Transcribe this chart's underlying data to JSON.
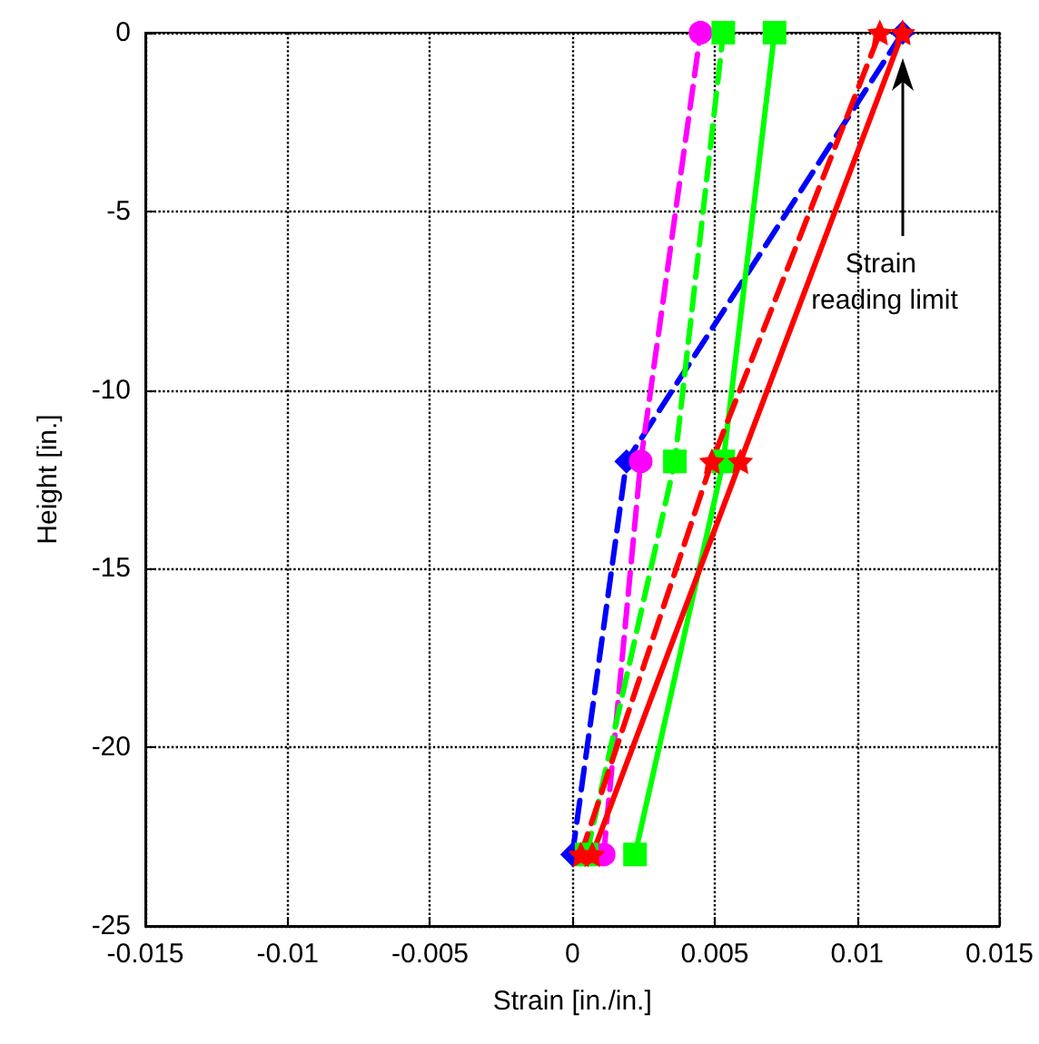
{
  "chart_data": {
    "type": "line",
    "xlabel": "Strain [in./in.]",
    "ylabel": "Height [in.]",
    "xlim": [
      -0.015,
      0.015
    ],
    "xticks": [
      -0.015,
      -0.01,
      -0.005,
      0,
      0.005,
      0.01,
      0.015
    ],
    "ylim": [
      -25,
      0
    ],
    "yticks": [
      -25,
      -20,
      -15,
      -10,
      -5,
      0
    ],
    "grid": true,
    "series": [
      {
        "color": "#0000ff",
        "x": [
          0,
          0.0019,
          0.0116
        ],
        "values": [
          -23,
          -12,
          0
        ],
        "marker": "diamond",
        "line_style": "dashed"
      },
      {
        "color": "#ff00ff",
        "x": [
          0.0011,
          0.0024,
          0.0045
        ],
        "values": [
          -23,
          -12,
          0
        ],
        "marker": "circle",
        "line_style": "dashed"
      },
      {
        "color": "#00ff00",
        "x": [
          0.0005,
          0.0036,
          0.0053
        ],
        "values": [
          -23,
          -12,
          0
        ],
        "marker": "square",
        "line_style": "dashed"
      },
      {
        "color": "#00ff00",
        "x": [
          0.0022,
          0.0053,
          0.0071
        ],
        "values": [
          -23,
          -12,
          0
        ],
        "marker": "square",
        "line_style": "solid"
      },
      {
        "color": "#ff0000",
        "x": [
          0.0003,
          0.0049,
          0.0108
        ],
        "values": [
          -23,
          -12,
          0
        ],
        "marker": "star",
        "line_style": "dashed"
      },
      {
        "color": "#ff0000",
        "x": [
          0.0007,
          0.0059,
          0.0116
        ],
        "values": [
          -23,
          -12,
          0
        ],
        "marker": "star",
        "line_style": "solid"
      }
    ],
    "annotations": [
      "Strain reading limit"
    ]
  }
}
